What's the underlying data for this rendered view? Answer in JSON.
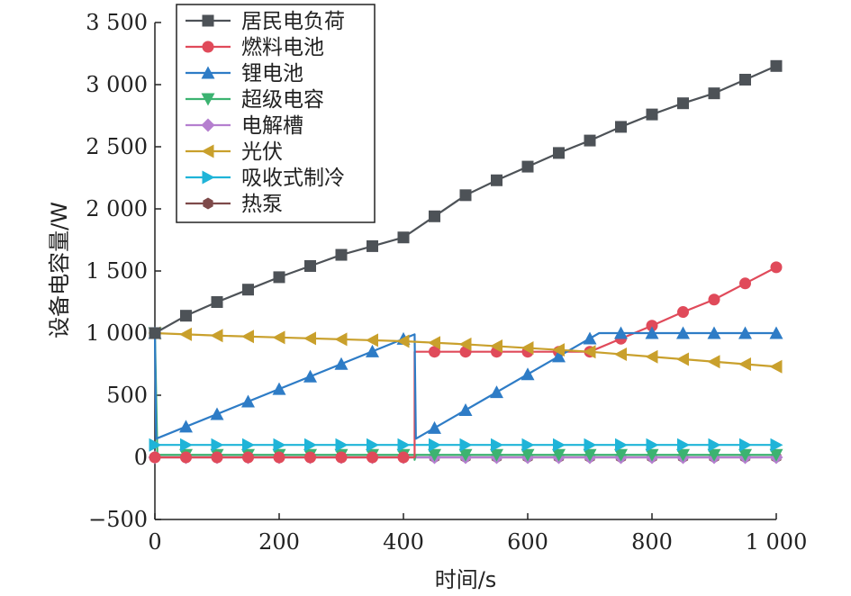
{
  "chart_data": {
    "type": "line",
    "xlabel": "时间/s",
    "ylabel": "设备电容量/W",
    "xlim": [
      0,
      1000
    ],
    "ylim": [
      -500,
      3500
    ],
    "xticks": [
      {
        "value": 0,
        "label": "0"
      },
      {
        "value": 200,
        "label": "200"
      },
      {
        "value": 400,
        "label": "400"
      },
      {
        "value": 600,
        "label": "600"
      },
      {
        "value": 800,
        "label": "800"
      },
      {
        "value": 1000,
        "label": "1 000"
      }
    ],
    "yticks": [
      {
        "value": -500,
        "label": "−500"
      },
      {
        "value": 0,
        "label": "0"
      },
      {
        "value": 500,
        "label": "500"
      },
      {
        "value": 1000,
        "label": "1 000"
      },
      {
        "value": 1500,
        "label": "1 500"
      },
      {
        "value": 2000,
        "label": "2 000"
      },
      {
        "value": 2500,
        "label": "2 500"
      },
      {
        "value": 3000,
        "label": "3 000"
      },
      {
        "value": 3500,
        "label": "3 500"
      }
    ],
    "grid": false,
    "legend_position": "top-left",
    "series": [
      {
        "name": "居民电负荷",
        "color": "#4d5257",
        "marker": "square",
        "x": [
          0,
          50,
          100,
          150,
          200,
          250,
          300,
          350,
          400,
          450,
          500,
          550,
          600,
          650,
          700,
          750,
          800,
          850,
          900,
          950,
          1000
        ],
        "y": [
          1000,
          1140,
          1250,
          1350,
          1450,
          1540,
          1630,
          1700,
          1770,
          1940,
          2110,
          2230,
          2340,
          2450,
          2550,
          2660,
          2760,
          2850,
          2930,
          3040,
          3150
        ],
        "marker_x": [
          0,
          50,
          100,
          150,
          200,
          250,
          300,
          350,
          400,
          450,
          500,
          550,
          600,
          650,
          700,
          750,
          800,
          850,
          900,
          950,
          1000
        ]
      },
      {
        "name": "燃料电池",
        "color": "#e04a5a",
        "marker": "circle",
        "x": [
          0,
          418,
          418,
          700,
          800,
          850,
          900,
          950,
          1000
        ],
        "y": [
          0,
          0,
          850,
          850,
          1060,
          1170,
          1270,
          1400,
          1530
        ],
        "marker_x": [
          0,
          50,
          100,
          150,
          200,
          250,
          300,
          350,
          400,
          450,
          500,
          550,
          600,
          650,
          700,
          750,
          800,
          850,
          900,
          950,
          1000
        ]
      },
      {
        "name": "锂电池",
        "color": "#2e7cc6",
        "marker": "triangle-up",
        "x": [
          0,
          2,
          418,
          418,
          420,
          715,
          1000
        ],
        "y": [
          1000,
          150,
          990,
          990,
          150,
          1000,
          1000
        ],
        "marker_x": [
          0,
          50,
          100,
          150,
          200,
          250,
          300,
          350,
          400,
          450,
          500,
          550,
          600,
          650,
          700,
          750,
          800,
          850,
          900,
          950,
          1000
        ]
      },
      {
        "name": "超级电容",
        "color": "#3cb371",
        "marker": "triangle-down",
        "x": [
          0,
          4,
          418,
          418,
          420,
          1000
        ],
        "y": [
          1000,
          20,
          20,
          -20,
          20,
          20
        ],
        "marker_x": [
          0,
          50,
          100,
          150,
          200,
          250,
          300,
          350,
          400,
          450,
          500,
          550,
          600,
          650,
          700,
          750,
          800,
          850,
          900,
          950,
          1000
        ]
      },
      {
        "name": "电解槽",
        "color": "#b57fcf",
        "marker": "diamond",
        "x": [
          0,
          1000
        ],
        "y": [
          0,
          0
        ],
        "marker_x": [
          0,
          50,
          100,
          150,
          200,
          250,
          300,
          350,
          400,
          450,
          500,
          550,
          600,
          650,
          700,
          750,
          800,
          850,
          900,
          950,
          1000
        ]
      },
      {
        "name": "光伏",
        "color": "#c9a02c",
        "marker": "triangle-left",
        "x": [
          0,
          100,
          200,
          300,
          400,
          500,
          600,
          700,
          800,
          900,
          1000
        ],
        "y": [
          1000,
          980,
          965,
          950,
          935,
          910,
          880,
          850,
          810,
          770,
          730
        ],
        "marker_x": [
          0,
          50,
          100,
          150,
          200,
          250,
          300,
          350,
          400,
          450,
          500,
          550,
          600,
          650,
          700,
          750,
          800,
          850,
          900,
          950,
          1000
        ]
      },
      {
        "name": "吸收式制冷",
        "color": "#1fb4d8",
        "marker": "triangle-right",
        "x": [
          0,
          1000
        ],
        "y": [
          100,
          100
        ],
        "marker_x": [
          0,
          50,
          100,
          150,
          200,
          250,
          300,
          350,
          400,
          450,
          500,
          550,
          600,
          650,
          700,
          750,
          800,
          850,
          900,
          950,
          1000
        ]
      },
      {
        "name": "热泵",
        "color": "#7e4a4a",
        "marker": "hexagon",
        "x": [
          0,
          1000
        ],
        "y": [
          0,
          0
        ],
        "marker_x": [
          0,
          50,
          100,
          150,
          200,
          250,
          300,
          350,
          400,
          450,
          500,
          550,
          600,
          650,
          700,
          750,
          800,
          850,
          900,
          950,
          1000
        ]
      }
    ]
  }
}
